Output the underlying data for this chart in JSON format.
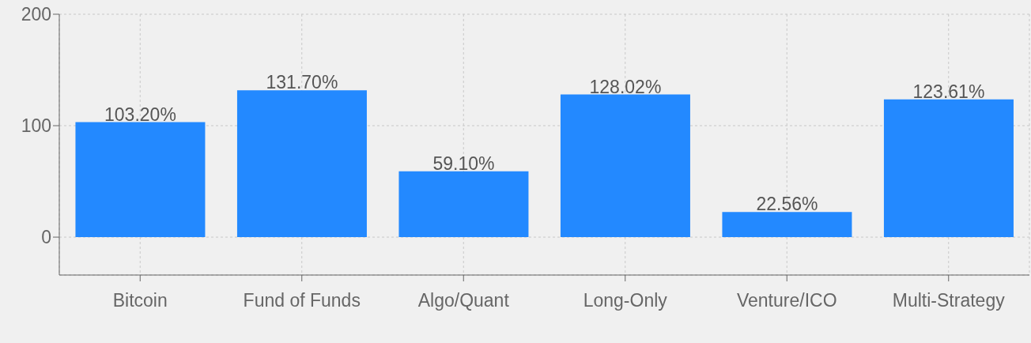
{
  "chart_data": {
    "type": "bar",
    "categories": [
      "Bitcoin",
      "Fund of Funds",
      "Algo/Quant",
      "Long-Only",
      "Venture/ICO",
      "Multi-Strategy"
    ],
    "values": [
      103.2,
      131.7,
      59.1,
      128.02,
      22.56,
      123.61
    ],
    "value_labels": [
      "103.20%",
      "131.70%",
      "59.10%",
      "128.02%",
      "22.56%",
      "123.61%"
    ],
    "color": "#2389ff",
    "ylim": [
      -34,
      200
    ],
    "yticks": [
      0,
      100,
      200
    ],
    "grid": true
  }
}
